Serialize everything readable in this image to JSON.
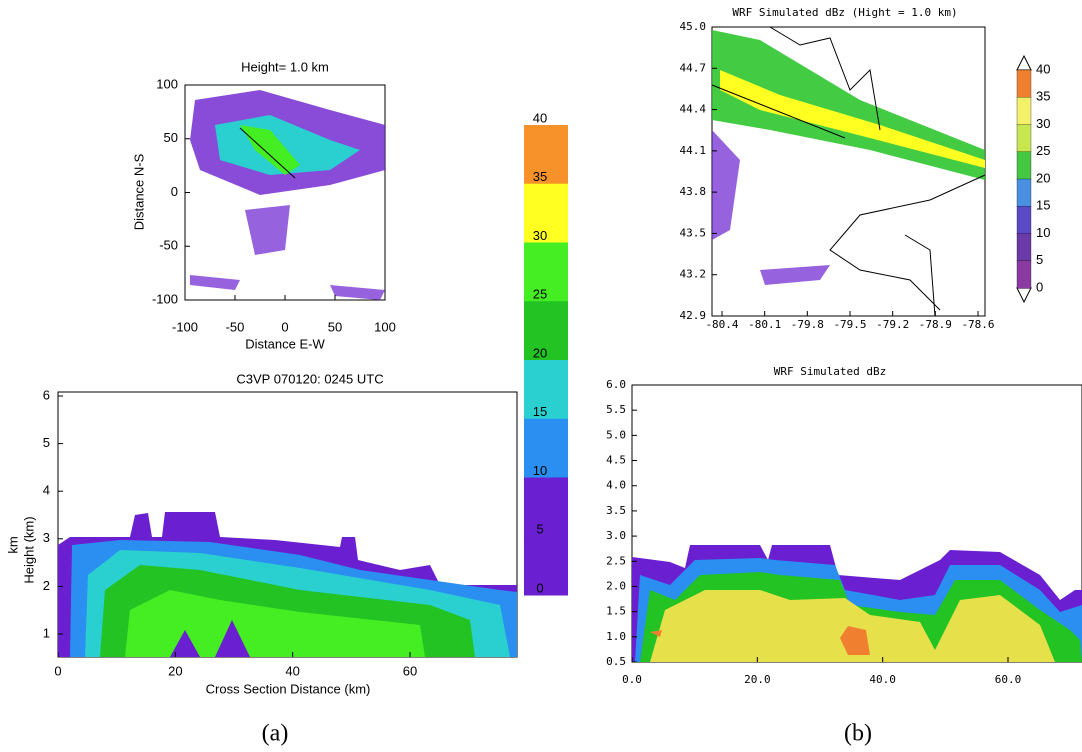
{
  "panel_a": {
    "map": {
      "title": "Height= 1.0 km",
      "x_label": "Distance E-W",
      "y_label": "Distance N-S",
      "x_ticks": [
        "-100",
        "-50",
        "0",
        "50",
        "100"
      ],
      "y_ticks": [
        "100",
        "50",
        "0",
        "-50",
        "-100"
      ]
    },
    "colorbar": {
      "ticks": [
        "40",
        "35",
        "30",
        "25",
        "20",
        "15",
        "10",
        "5",
        "0"
      ]
    },
    "section": {
      "title": "C3VP 070120: 0245 UTC",
      "x_label": "Cross Section Distance (km)",
      "y_label_unit": "km",
      "y_label": "Height (km)",
      "x_ticks": [
        "0",
        "20",
        "40",
        "60"
      ],
      "y_ticks": [
        "6",
        "5",
        "4",
        "3",
        "2",
        "1"
      ]
    },
    "caption": "(a)"
  },
  "panel_b": {
    "map": {
      "title": "WRF  Simulated  dBz   (Hight = 1.0 km)",
      "x_ticks": [
        "-80.4",
        "-80.1",
        "-79.8",
        "-79.5",
        "-79.2",
        "-78.9",
        "-78.6"
      ],
      "y_ticks": [
        "45.0",
        "44.7",
        "44.4",
        "44.1",
        "43.8",
        "43.5",
        "43.2",
        "42.9"
      ]
    },
    "colorbar": {
      "ticks": [
        "40",
        "35",
        "30",
        "25",
        "20",
        "15",
        "10",
        "5",
        "0"
      ]
    },
    "section": {
      "title": "WRF  Simulated  dBz",
      "x_ticks": [
        "0.0",
        "20.0",
        "40.0",
        "60.0"
      ],
      "y_ticks": [
        "6.0",
        "5.5",
        "5.0",
        "4.5",
        "4.0",
        "3.5",
        "3.0",
        "2.5",
        "2.0",
        "1.5",
        "1.0",
        "0.5"
      ]
    },
    "caption": "(b)"
  }
}
